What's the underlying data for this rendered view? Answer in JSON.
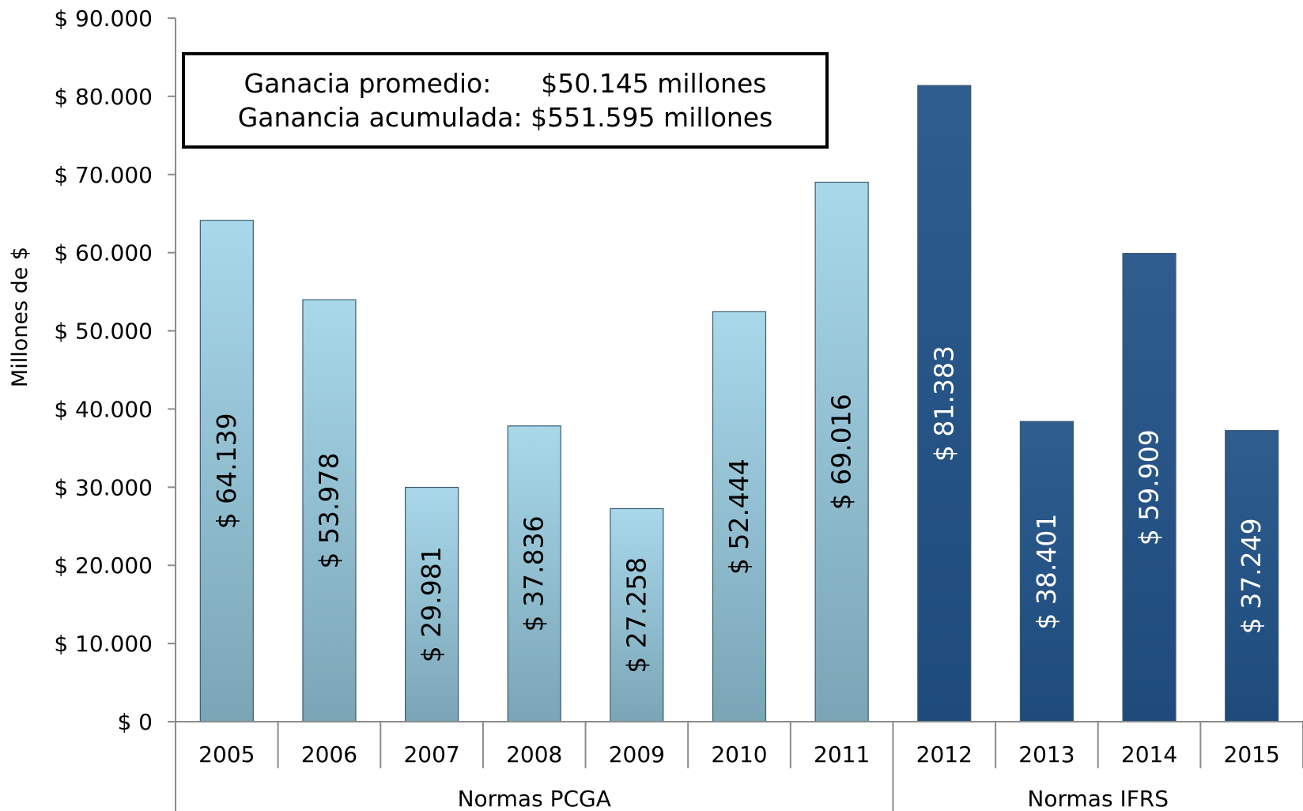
{
  "summary": {
    "line1_label": "Ganacia promedio:",
    "line1_value": "$50.145 millones",
    "line2_label": "Ganancia acumulada:",
    "line2_value": "$551.595 millones"
  },
  "chart_data": {
    "type": "bar",
    "title": "",
    "xlabel": "",
    "ylabel": "Millones de $",
    "ylim": [
      0,
      90000
    ],
    "yticks": [
      0,
      10000,
      20000,
      30000,
      40000,
      50000,
      60000,
      70000,
      80000,
      90000
    ],
    "ytick_labels": [
      "$ 0",
      "$ 10.000",
      "$ 20.000",
      "$ 30.000",
      "$ 40.000",
      "$ 50.000",
      "$ 60.000",
      "$ 70.000",
      "$ 80.000",
      "$ 90.000"
    ],
    "grid": false,
    "legend": "none",
    "categories": [
      "2005",
      "2006",
      "2007",
      "2008",
      "2009",
      "2010",
      "2011",
      "2012",
      "2013",
      "2014",
      "2015"
    ],
    "values": [
      64139,
      53978,
      29981,
      37836,
      27258,
      52444,
      69016,
      81383,
      38401,
      59909,
      37249
    ],
    "data_labels": [
      "$ 64.139",
      "$ 53.978",
      "$ 29.981",
      "$ 37.836",
      "$ 27.258",
      "$ 52.444",
      "$ 69.016",
      "$ 81.383",
      "$ 38.401",
      "$ 59.909",
      "$ 37.249"
    ],
    "groups": [
      {
        "label": "Normas PCGA",
        "categories": [
          "2005",
          "2006",
          "2007",
          "2008",
          "2009",
          "2010",
          "2011"
        ],
        "color_top": "#a8d8ea",
        "color_bottom": "#7aa5b6",
        "label_color": "#000000"
      },
      {
        "label": "Normas IFRS",
        "categories": [
          "2012",
          "2013",
          "2014",
          "2015"
        ],
        "color_top": "#2f5d8f",
        "color_bottom": "#1e4a7c",
        "label_color": "#ffffff"
      }
    ]
  }
}
